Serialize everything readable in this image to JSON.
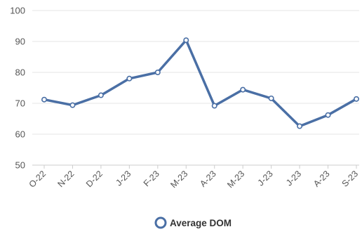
{
  "chart_data": {
    "type": "line",
    "categories": [
      "O-22",
      "N-22",
      "D-22",
      "J-23",
      "F-23",
      "M-23",
      "A-23",
      "M-23",
      "J-23",
      "J-23",
      "A-23",
      "S-23"
    ],
    "series": [
      {
        "name": "Average DOM",
        "values": [
          71.2,
          69.4,
          72.6,
          78.0,
          80.0,
          90.4,
          69.2,
          74.4,
          71.6,
          62.6,
          66.2,
          71.4
        ]
      }
    ],
    "ylim": [
      50,
      100
    ],
    "yticks": [
      50,
      60,
      70,
      80,
      90,
      100
    ],
    "grid": true,
    "legend_position": "bottom-center",
    "colors": {
      "series": "#4a6fa5",
      "marker_fill": "#ffffff",
      "grid": "#e6e6e6",
      "axis": "#cccccc",
      "text": "#555555"
    }
  }
}
